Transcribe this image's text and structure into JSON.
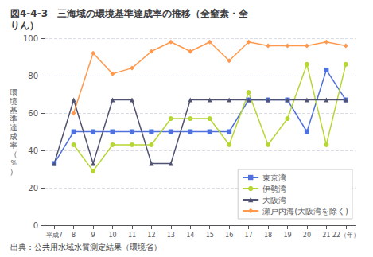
{
  "chart_data": {
    "type": "line",
    "title": "図4-4-3　三海域の環境基準達成率の推移（全窒素・全\nりん）",
    "ylabel": "環境基準達成率（％）",
    "annotations": [
      "出典：公共用水域水質測定結果（環境省）"
    ],
    "x": [
      7,
      8,
      9,
      10,
      11,
      12,
      13,
      14,
      15,
      16,
      17,
      18,
      19,
      20,
      21,
      22
    ],
    "xlim": [
      6.5,
      22.5
    ],
    "xticks": [
      {
        "value": 7,
        "label": "平成7"
      },
      8,
      9,
      10,
      11,
      12,
      13,
      14,
      15,
      16,
      17,
      18,
      19,
      20,
      21,
      {
        "value": 22,
        "label": "22（年）"
      }
    ],
    "series": [
      {
        "name": "東京湾",
        "marker": "square",
        "values": [
          33,
          50,
          50,
          50,
          50,
          50,
          50,
          50,
          50,
          50,
          67,
          67,
          67,
          50,
          83,
          67
        ]
      },
      {
        "name": "伊勢湾",
        "marker": "circle",
        "values": [
          null,
          43,
          29,
          43,
          43,
          43,
          57,
          57,
          57,
          43,
          71,
          43,
          57,
          86,
          43,
          86
        ]
      },
      {
        "name": "大阪湾",
        "marker": "triangle",
        "values": [
          33,
          67,
          33,
          67,
          67,
          33,
          33,
          67,
          67,
          67,
          67,
          67,
          67,
          67,
          67,
          67
        ]
      },
      {
        "name": "瀬戸内海(大阪湾を除く)",
        "marker": "diamond",
        "values": [
          null,
          60,
          92,
          81,
          84,
          93,
          98,
          93,
          98,
          88,
          98,
          96,
          96,
          96,
          98,
          96
        ]
      }
    ],
    "ylim": [
      0,
      100
    ],
    "yticks": [
      0,
      20,
      40,
      60,
      80,
      100
    ],
    "grid": true,
    "legend": "lower right"
  }
}
